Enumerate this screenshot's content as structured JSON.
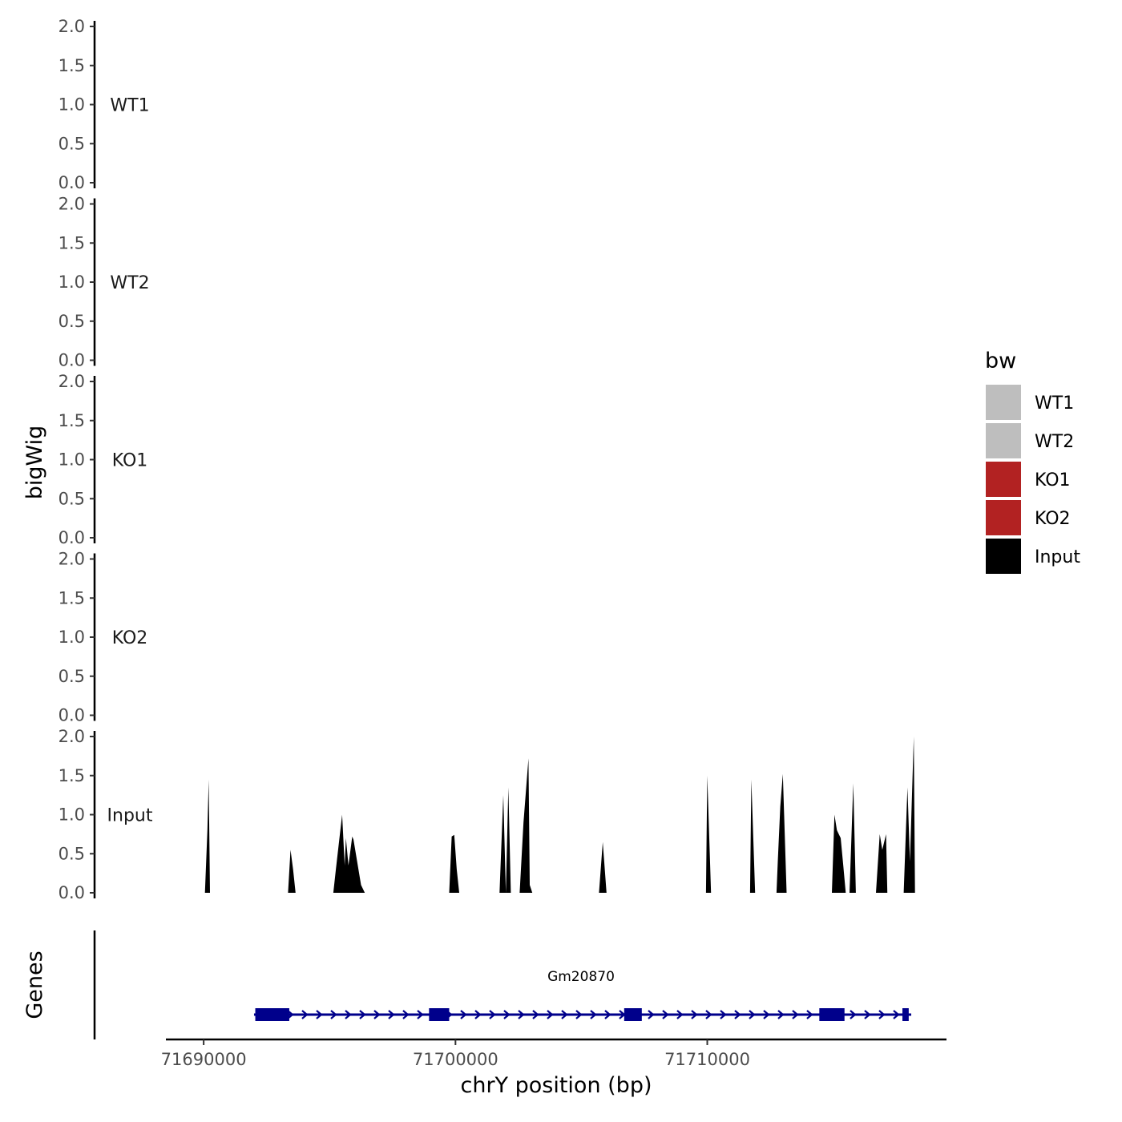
{
  "chart_data": {
    "type": "area",
    "title": "",
    "xlabel": "chrY position (bp)",
    "ylabel": "bigWig",
    "genes_label": "Genes",
    "xlim": [
      71688500,
      71719500
    ],
    "ylim": [
      0,
      2
    ],
    "x_ticks": [
      71690000,
      71700000,
      71710000
    ],
    "x_tick_labels": [
      "71690000",
      "71700000",
      "71710000"
    ],
    "y_ticks": [
      0,
      0.5,
      1,
      1.5,
      2
    ],
    "y_tick_labels": [
      "0.0",
      "0.5",
      "1.0",
      "1.5",
      "2.0"
    ],
    "legend": {
      "title": "bw",
      "placement": "right",
      "entries": [
        {
          "label": "WT1",
          "color": "#bebebe"
        },
        {
          "label": "WT2",
          "color": "#bebebe"
        },
        {
          "label": "KO1",
          "color": "#b22222"
        },
        {
          "label": "KO2",
          "color": "#b22222"
        },
        {
          "label": "Input",
          "color": "#000000"
        }
      ]
    },
    "series": [
      {
        "name": "WT1",
        "color": "#bebebe",
        "x": [],
        "y": []
      },
      {
        "name": "WT2",
        "color": "#bebebe",
        "x": [],
        "y": []
      },
      {
        "name": "KO1",
        "color": "#b22222",
        "x": [],
        "y": []
      },
      {
        "name": "KO2",
        "color": "#b22222",
        "x": [],
        "y": []
      },
      {
        "name": "Input",
        "color": "#000000",
        "x": [
          71690050,
          71690150,
          71690200,
          71690250,
          71690350,
          71693350,
          71693450,
          71693550,
          71693650,
          71695150,
          71695250,
          71695500,
          71695600,
          71695650,
          71695750,
          71695900,
          71695950,
          71696250,
          71696400,
          71699750,
          71699850,
          71699950,
          71700050,
          71700150,
          71701750,
          71701900,
          71702000,
          71702100,
          71702200,
          71702400,
          71702550,
          71702700,
          71702900,
          71702950,
          71703050,
          71705700,
          71705850,
          71706000,
          71709950,
          71710000,
          71710150,
          71711700,
          71711750,
          71711900,
          71712750,
          71712800,
          71712900,
          71713000,
          71713150,
          71714950,
          71715050,
          71715150,
          71715300,
          71715400,
          71715500,
          71715650,
          71715800,
          71715900,
          71716700,
          71716850,
          71716950,
          71717100,
          71717150,
          71717800,
          71717950,
          71718050,
          71718200,
          71718250
        ],
        "y": [
          0,
          0.8,
          1.45,
          0,
          0,
          0,
          0.55,
          0.3,
          0,
          0,
          0.3,
          1.0,
          0.35,
          0.7,
          0.35,
          0.72,
          0.68,
          0.1,
          0,
          0,
          0.72,
          0.74,
          0.3,
          0,
          0,
          1.25,
          0,
          1.35,
          0,
          0,
          0,
          0.9,
          1.72,
          0.1,
          0,
          0,
          0.65,
          0,
          0,
          1.5,
          0,
          0,
          1.45,
          0,
          0,
          0.4,
          1.1,
          1.52,
          0,
          0,
          1.0,
          0.8,
          0.7,
          0.35,
          0,
          0,
          1.4,
          0,
          0,
          0.75,
          0.55,
          0.75,
          0,
          0,
          1.35,
          0.4,
          2.0,
          0
        ]
      }
    ],
    "gene": {
      "name": "Gm20870",
      "start": 71692000,
      "end": 71718100,
      "strand": "+",
      "color": "#00008b",
      "exons": [
        71692050,
        71693400,
        71698950,
        71699750,
        71706700,
        71707400,
        71714450,
        71715450,
        71717750,
        71718000
      ]
    }
  }
}
